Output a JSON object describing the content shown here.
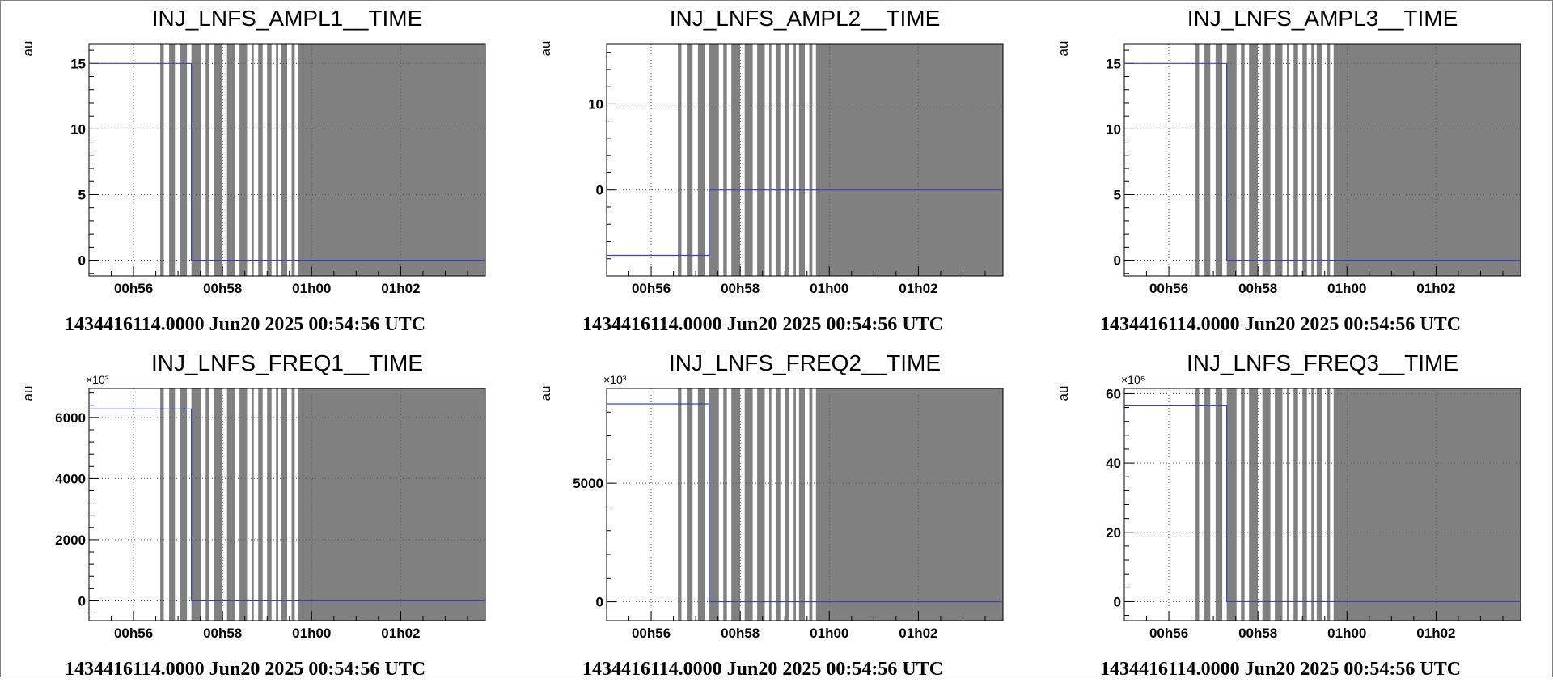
{
  "chart_data": [
    {
      "type": "line",
      "title": "INJ_LNFS_AMPL1__TIME",
      "ylabel": "au",
      "multiplier": "",
      "ylim": [
        -1.2,
        16.5
      ],
      "yticks": [
        0,
        5,
        10,
        15
      ],
      "x_ticks": [
        "00h56",
        "00h58",
        "01h00",
        "01h02"
      ],
      "footer": "1434416114.0000 Jun20 2025 00:54:56 UTC",
      "series": [
        {
          "step_time": "00h57.3",
          "values_before": 15,
          "values_after": 0
        }
      ]
    },
    {
      "type": "line",
      "title": "INJ_LNFS_AMPL2__TIME",
      "ylabel": "au",
      "multiplier": "",
      "ylim": [
        -10,
        17
      ],
      "yticks": [
        0,
        10
      ],
      "x_ticks": [
        "00h56",
        "00h58",
        "01h00",
        "01h02"
      ],
      "footer": "1434416114.0000 Jun20 2025 00:54:56 UTC",
      "series": [
        {
          "step_time": "00h57.3",
          "values_before": -7.6,
          "values_after": 0
        }
      ]
    },
    {
      "type": "line",
      "title": "INJ_LNFS_AMPL3__TIME",
      "ylabel": "au",
      "multiplier": "",
      "ylim": [
        -1.2,
        16.5
      ],
      "yticks": [
        0,
        5,
        10,
        15
      ],
      "x_ticks": [
        "00h56",
        "00h58",
        "01h00",
        "01h02"
      ],
      "footer": "1434416114.0000 Jun20 2025 00:54:56 UTC",
      "series": [
        {
          "step_time": "00h57.3",
          "values_before": 15,
          "values_after": 0
        }
      ]
    },
    {
      "type": "line",
      "title": "INJ_LNFS_FREQ1__TIME",
      "ylabel": "au",
      "multiplier": "×10³",
      "ylim": [
        -650,
        6950
      ],
      "yticks": [
        0,
        2000,
        4000,
        6000
      ],
      "x_ticks": [
        "00h56",
        "00h58",
        "01h00",
        "01h02"
      ],
      "footer": "1434416114.0000 Jun20 2025 00:54:56 UTC",
      "series": [
        {
          "step_time": "00h57.3",
          "values_before": 6280,
          "values_after": 0
        }
      ]
    },
    {
      "type": "line",
      "title": "INJ_LNFS_FREQ2__TIME",
      "ylabel": "au",
      "multiplier": "×10³",
      "ylim": [
        -800,
        9000
      ],
      "yticks": [
        0,
        5000
      ],
      "x_ticks": [
        "00h56",
        "00h58",
        "01h00",
        "01h02"
      ],
      "footer": "1434416114.0000 Jun20 2025 00:54:56 UTC",
      "series": [
        {
          "step_time": "00h57.3",
          "values_before": 8350,
          "values_after": 0
        }
      ]
    },
    {
      "type": "line",
      "title": "INJ_LNFS_FREQ3__TIME",
      "ylabel": "au",
      "multiplier": "×10⁶",
      "ylim": [
        -5.5,
        61.5
      ],
      "yticks": [
        0,
        20,
        40,
        60
      ],
      "x_ticks": [
        "00h56",
        "00h58",
        "01h00",
        "01h02"
      ],
      "footer": "1434416114.0000 Jun20 2025 00:54:56 UTC",
      "series": [
        {
          "step_time": "00h57.3",
          "values_before": 56.5,
          "values_after": 0
        }
      ]
    }
  ],
  "x_axis_minutes": {
    "start": 55.0,
    "end": 63.9,
    "tick_minutes": [
      56,
      58,
      60,
      62
    ]
  },
  "shaded_intervals_minutes": [
    [
      56.6,
      56.68
    ],
    [
      56.8,
      56.93
    ],
    [
      57.05,
      57.2
    ],
    [
      57.3,
      57.52
    ],
    [
      57.62,
      57.7
    ],
    [
      57.8,
      58.0
    ],
    [
      58.1,
      58.28
    ],
    [
      58.38,
      58.55
    ],
    [
      58.65,
      58.7
    ],
    [
      58.8,
      58.9
    ],
    [
      59.0,
      59.1
    ],
    [
      59.2,
      59.25
    ],
    [
      59.32,
      59.45
    ],
    [
      59.55,
      59.62
    ],
    [
      59.7,
      63.9
    ]
  ],
  "colors": {
    "series": "#3d3dc4",
    "shade": "#808080",
    "grid": "#555555"
  }
}
